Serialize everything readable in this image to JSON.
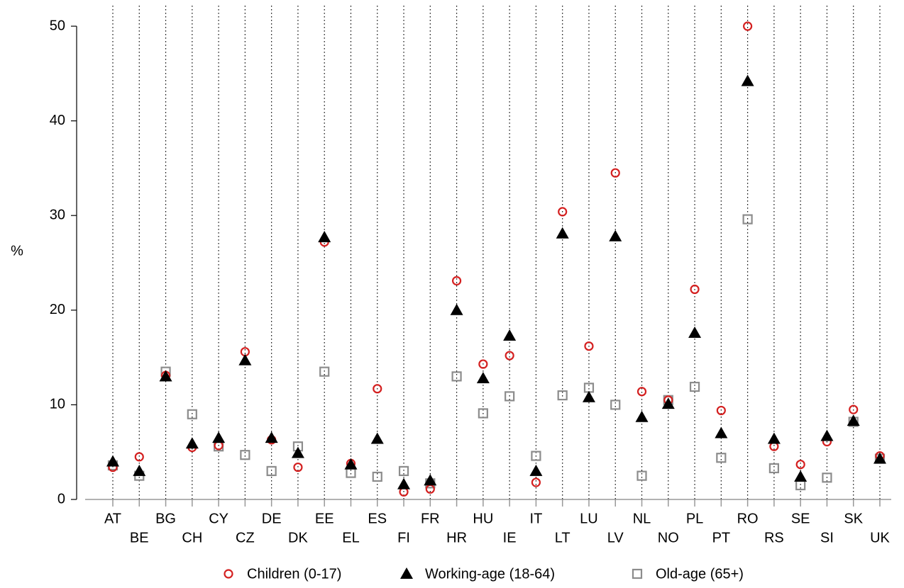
{
  "chart_data": {
    "type": "dot",
    "y_label": "%",
    "categories": [
      "AT",
      "BE",
      "BG",
      "CH",
      "CY",
      "CZ",
      "DE",
      "DK",
      "EE",
      "EL",
      "ES",
      "FI",
      "FR",
      "HR",
      "HU",
      "IE",
      "IT",
      "LT",
      "LU",
      "LV",
      "NL",
      "NO",
      "PL",
      "PT",
      "RO",
      "RS",
      "SE",
      "SI",
      "SK",
      "UK"
    ],
    "series": [
      {
        "name": "Children (0-17)",
        "color": "#d42020",
        "marker": "circle",
        "values": [
          3.4,
          4.5,
          13.1,
          5.5,
          5.7,
          15.6,
          6.3,
          3.4,
          27.2,
          3.8,
          11.7,
          0.8,
          1.1,
          23.1,
          14.3,
          15.2,
          1.8,
          30.4,
          16.2,
          34.5,
          11.4,
          10.5,
          22.2,
          9.4,
          50.0,
          5.6,
          3.7,
          6.1,
          9.5,
          4.6
        ]
      },
      {
        "name": "Working-age (18-64)",
        "color": "#000000",
        "marker": "triangle",
        "values": [
          4.0,
          3.0,
          13.0,
          5.9,
          6.5,
          14.7,
          6.5,
          4.9,
          27.7,
          3.7,
          6.4,
          1.6,
          2.0,
          20.0,
          12.8,
          17.3,
          3.0,
          28.1,
          10.8,
          27.8,
          8.7,
          10.1,
          17.6,
          7.0,
          44.2,
          6.4,
          2.4,
          6.7,
          8.3,
          4.3
        ]
      },
      {
        "name": "Old-age (65+)",
        "color": "#8c8c8c",
        "marker": "square",
        "values": [
          3.6,
          2.5,
          13.5,
          9.0,
          5.6,
          4.7,
          3.0,
          5.6,
          13.5,
          2.8,
          2.4,
          3.0,
          1.7,
          13.0,
          9.1,
          10.9,
          4.6,
          11.0,
          11.8,
          10.0,
          2.5,
          10.5,
          11.9,
          4.4,
          29.6,
          3.3,
          1.5,
          2.3,
          8.2,
          4.3
        ]
      }
    ],
    "ylim": [
      0,
      50
    ],
    "yticks": [
      0,
      10,
      20,
      30,
      40,
      50
    ]
  }
}
